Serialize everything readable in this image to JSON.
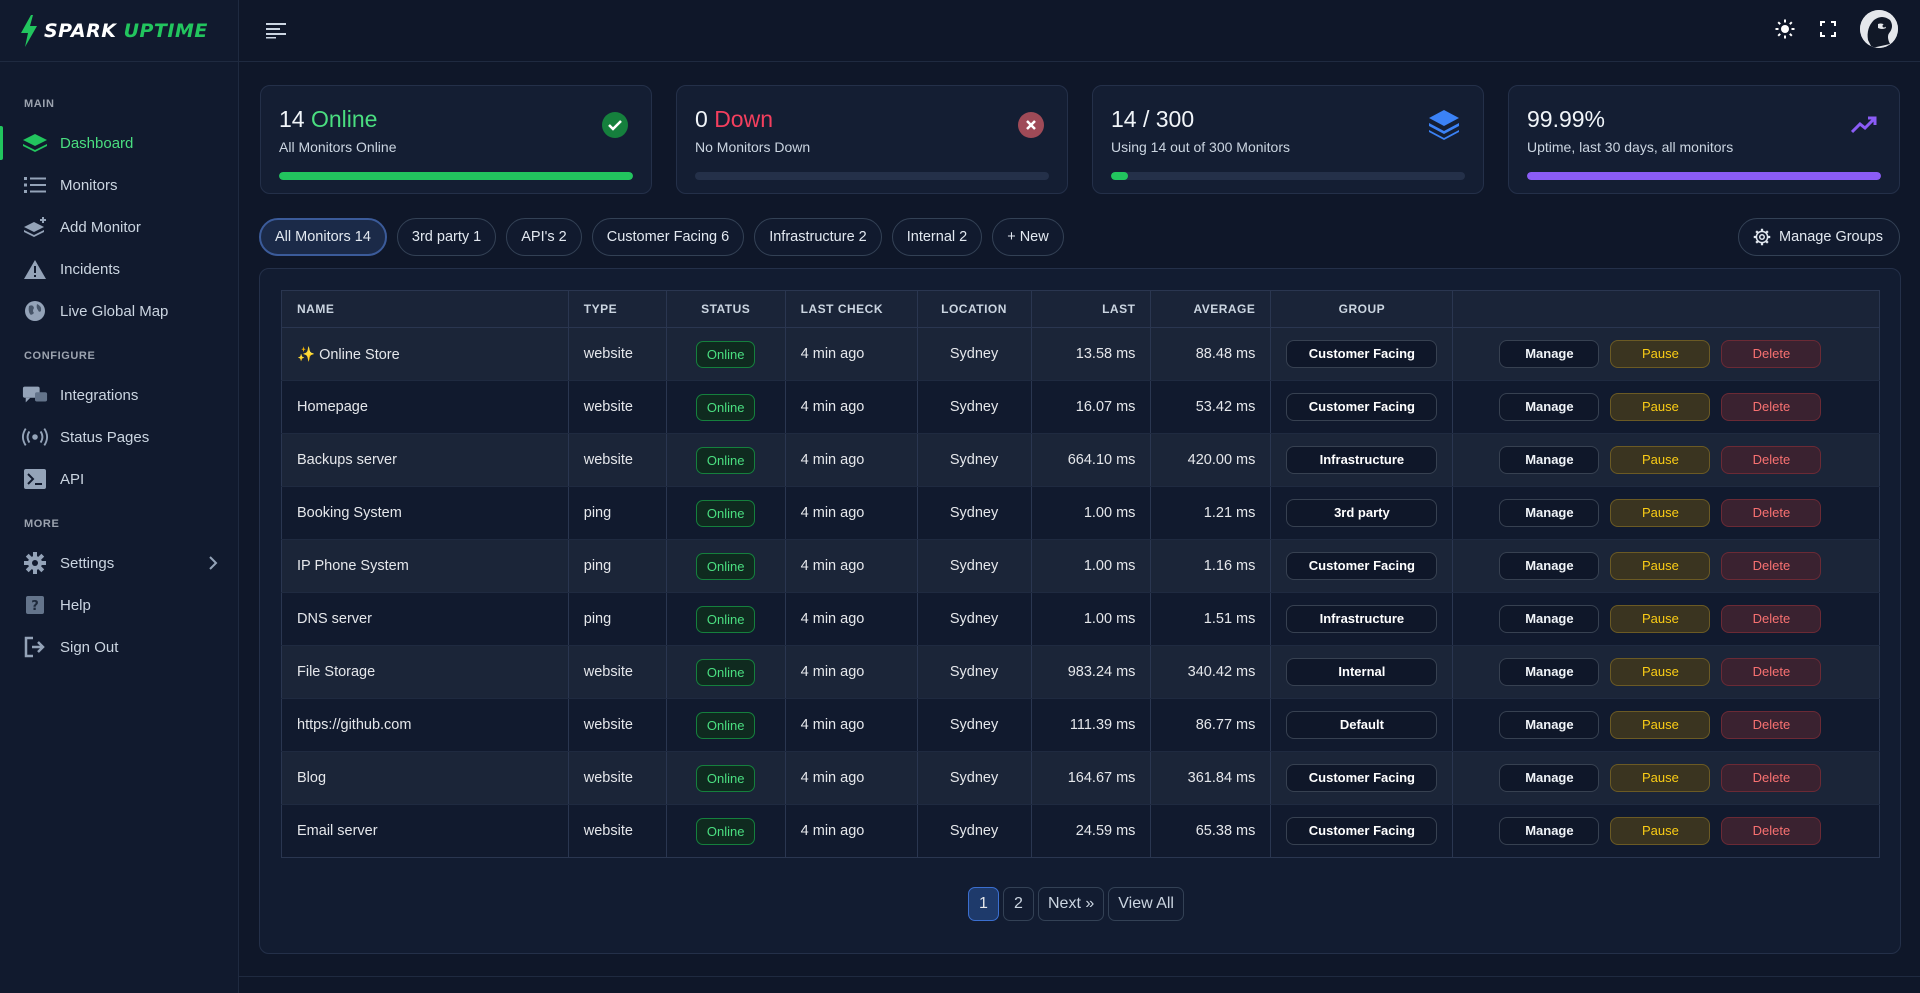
{
  "app": {
    "logo_word1": "SPARK",
    "logo_word2": "UPTIME"
  },
  "sidebar": {
    "sections": [
      {
        "label": "MAIN",
        "items": [
          {
            "label": "Dashboard",
            "icon": "layers-icon",
            "active": true
          },
          {
            "label": "Monitors",
            "icon": "list-icon"
          },
          {
            "label": "Add Monitor",
            "icon": "add-layers-icon"
          },
          {
            "label": "Incidents",
            "icon": "warning-icon"
          },
          {
            "label": "Live Global Map",
            "icon": "globe-icon"
          }
        ]
      },
      {
        "label": "CONFIGURE",
        "items": [
          {
            "label": "Integrations",
            "icon": "chat-icon"
          },
          {
            "label": "Status Pages",
            "icon": "broadcast-icon"
          },
          {
            "label": "API",
            "icon": "terminal-icon"
          }
        ]
      },
      {
        "label": "MORE",
        "items": [
          {
            "label": "Settings",
            "icon": "gear-icon"
          },
          {
            "label": "Help",
            "icon": "help-icon"
          },
          {
            "label": "Sign Out",
            "icon": "sign-out-icon"
          }
        ]
      }
    ]
  },
  "cards": [
    {
      "value": "14",
      "word": "Online",
      "subtitle": "All Monitors Online",
      "progress": 1.0,
      "color": "#22c55e",
      "icon": "check-circle-icon"
    },
    {
      "value": "0",
      "word": "Down",
      "subtitle": "No Monitors Down",
      "progress": 0.0,
      "color": "#ef4444",
      "icon": "x-circle-icon"
    },
    {
      "value": "14 / 300",
      "word": "",
      "subtitle": "Using 14 out of 300 Monitors",
      "progress": 0.047,
      "color": "#22c55e",
      "icon": "stack-icon"
    },
    {
      "value": "99.99%",
      "word": "",
      "subtitle": "Uptime, last 30 days, all monitors",
      "progress": 0.9999,
      "color": "#8b5cf6",
      "icon": "trend-up-icon"
    }
  ],
  "filters": {
    "tabs": [
      "All Monitors 14",
      "3rd party 1",
      "API's 2",
      "Customer Facing 6",
      "Infrastructure 2",
      "Internal 2",
      "+ New"
    ],
    "manage_groups": "Manage Groups"
  },
  "table": {
    "headers": [
      "NAME",
      "TYPE",
      "STATUS",
      "LAST CHECK",
      "LOCATION",
      "LAST",
      "AVERAGE",
      "GROUP",
      ""
    ],
    "rows": [
      {
        "name": "✨ Online Store",
        "type": "website",
        "status": "Online",
        "last_check": "4 min ago",
        "location": "Sydney",
        "last": "13.58 ms",
        "average": "88.48 ms",
        "group": "Customer Facing"
      },
      {
        "name": "Homepage",
        "type": "website",
        "status": "Online",
        "last_check": "4 min ago",
        "location": "Sydney",
        "last": "16.07 ms",
        "average": "53.42 ms",
        "group": "Customer Facing"
      },
      {
        "name": "Backups server",
        "type": "website",
        "status": "Online",
        "last_check": "4 min ago",
        "location": "Sydney",
        "last": "664.10 ms",
        "average": "420.00 ms",
        "group": "Infrastructure"
      },
      {
        "name": "Booking System",
        "type": "ping",
        "status": "Online",
        "last_check": "4 min ago",
        "location": "Sydney",
        "last": "1.00 ms",
        "average": "1.21 ms",
        "group": "3rd party"
      },
      {
        "name": "IP Phone System",
        "type": "ping",
        "status": "Online",
        "last_check": "4 min ago",
        "location": "Sydney",
        "last": "1.00 ms",
        "average": "1.16 ms",
        "group": "Customer Facing"
      },
      {
        "name": "DNS server",
        "type": "ping",
        "status": "Online",
        "last_check": "4 min ago",
        "location": "Sydney",
        "last": "1.00 ms",
        "average": "1.51 ms",
        "group": "Infrastructure"
      },
      {
        "name": "File Storage",
        "type": "website",
        "status": "Online",
        "last_check": "4 min ago",
        "location": "Sydney",
        "last": "983.24 ms",
        "average": "340.42 ms",
        "group": "Internal"
      },
      {
        "name": "https://github.com",
        "type": "website",
        "status": "Online",
        "last_check": "4 min ago",
        "location": "Sydney",
        "last": "111.39 ms",
        "average": "86.77 ms",
        "group": "Default"
      },
      {
        "name": "Blog",
        "type": "website",
        "status": "Online",
        "last_check": "4 min ago",
        "location": "Sydney",
        "last": "164.67 ms",
        "average": "361.84 ms",
        "group": "Customer Facing"
      },
      {
        "name": "Email server",
        "type": "website",
        "status": "Online",
        "last_check": "4 min ago",
        "location": "Sydney",
        "last": "24.59 ms",
        "average": "65.38 ms",
        "group": "Customer Facing"
      }
    ],
    "action_labels": {
      "manage": "Manage",
      "pause": "Pause",
      "delete": "Delete"
    }
  },
  "pagination": {
    "pages": [
      "1",
      "2"
    ],
    "current": "1",
    "next": "Next »",
    "view_all": "View All"
  }
}
